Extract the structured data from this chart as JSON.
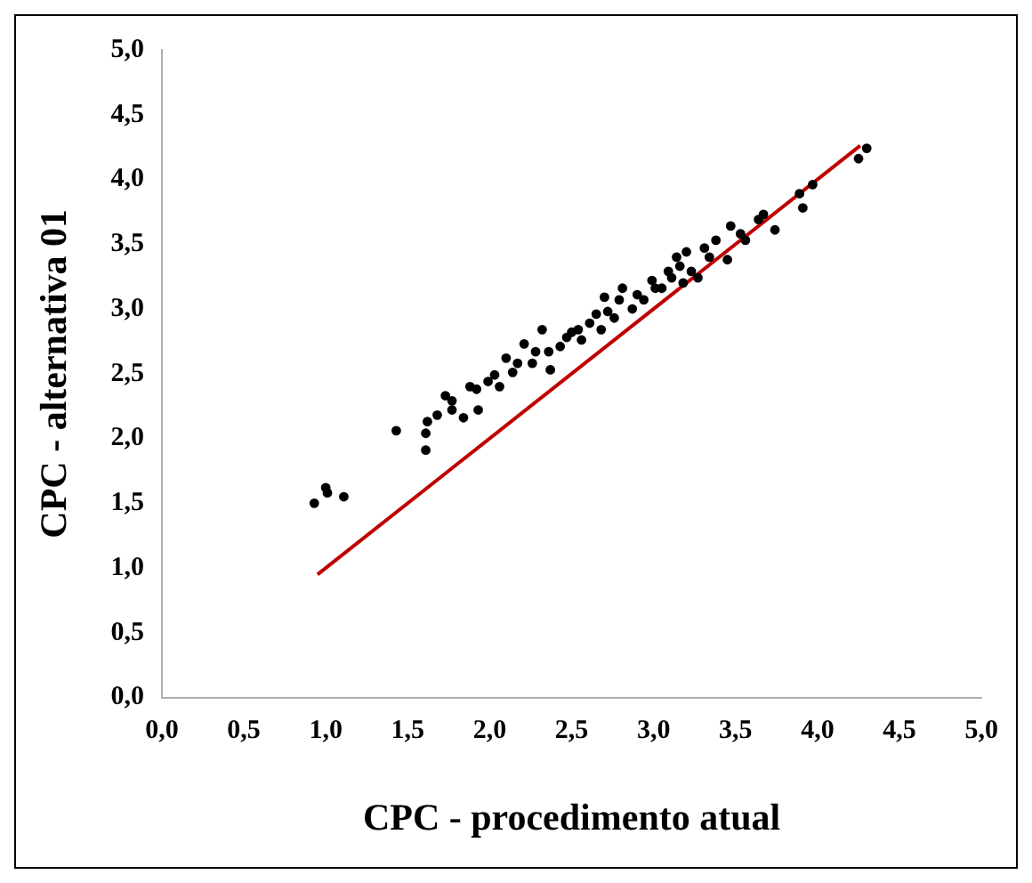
{
  "chart_data": {
    "type": "scatter",
    "xlabel": "CPC - procedimento atual",
    "ylabel": "CPC - alternativa 01",
    "xlim": [
      0,
      5
    ],
    "ylim": [
      0,
      5
    ],
    "xticks": [
      {
        "value": 0,
        "label": "0,0"
      },
      {
        "value": 0.5,
        "label": "0,5"
      },
      {
        "value": 1,
        "label": "1,0"
      },
      {
        "value": 1.5,
        "label": "1,5"
      },
      {
        "value": 2,
        "label": "2,0"
      },
      {
        "value": 2.5,
        "label": "2,5"
      },
      {
        "value": 3,
        "label": "3,0"
      },
      {
        "value": 3.5,
        "label": "3,5"
      },
      {
        "value": 4,
        "label": "4,0"
      },
      {
        "value": 4.5,
        "label": "4,5"
      },
      {
        "value": 5,
        "label": "5,0"
      }
    ],
    "yticks": [
      {
        "value": 0,
        "label": "0,0"
      },
      {
        "value": 0.5,
        "label": "0,5"
      },
      {
        "value": 1,
        "label": "1,0"
      },
      {
        "value": 1.5,
        "label": "1,5"
      },
      {
        "value": 2,
        "label": "2,0"
      },
      {
        "value": 2.5,
        "label": "2,5"
      },
      {
        "value": 3,
        "label": "3,0"
      },
      {
        "value": 3.5,
        "label": "3,5"
      },
      {
        "value": 4,
        "label": "4,0"
      },
      {
        "value": 4.5,
        "label": "4,5"
      },
      {
        "value": 5,
        "label": "5,0"
      }
    ],
    "grid": false,
    "legend": false,
    "marker": "circle",
    "series": [
      {
        "color": "#000000",
        "x": [
          0.93,
          1.0,
          1.01,
          1.11,
          1.43,
          1.61,
          1.61,
          1.62,
          1.68,
          1.73,
          1.77,
          1.84,
          1.92,
          1.93,
          1.99,
          2.06,
          2.1,
          2.14,
          2.21,
          2.26,
          2.32,
          2.37,
          2.43,
          2.5,
          2.56,
          2.61,
          2.68,
          2.7,
          2.76,
          2.81,
          2.87,
          2.94,
          2.99,
          3.05,
          3.11,
          3.14,
          3.2,
          3.18,
          3.27,
          3.31,
          3.38,
          3.45,
          3.47,
          3.53,
          3.56,
          3.64,
          3.67,
          3.74,
          3.89,
          3.91,
          3.97,
          4.25,
          4.3,
          1.77,
          1.88,
          2.03,
          2.17,
          2.28,
          2.36,
          2.47,
          2.54,
          2.65,
          2.72,
          2.79,
          2.9,
          3.01,
          3.09,
          3.16,
          3.23,
          3.34
        ],
        "values": [
          1.5,
          1.62,
          1.58,
          1.55,
          2.06,
          2.04,
          1.91,
          2.13,
          2.18,
          2.33,
          2.22,
          2.16,
          2.38,
          2.22,
          2.44,
          2.4,
          2.62,
          2.51,
          2.73,
          2.58,
          2.84,
          2.53,
          2.71,
          2.82,
          2.76,
          2.89,
          2.84,
          3.09,
          2.93,
          3.16,
          3.0,
          3.07,
          3.22,
          3.16,
          3.24,
          3.4,
          3.44,
          3.2,
          3.24,
          3.47,
          3.53,
          3.38,
          3.64,
          3.58,
          3.53,
          3.69,
          3.73,
          3.61,
          3.89,
          3.78,
          3.96,
          4.16,
          4.24,
          2.29,
          2.4,
          2.49,
          2.58,
          2.67,
          2.67,
          2.78,
          2.84,
          2.96,
          2.98,
          3.07,
          3.11,
          3.16,
          3.29,
          3.33,
          3.29,
          3.4
        ]
      },
      {
        "type": "line",
        "color": "#c00000",
        "marker": "none",
        "line_style": "solid",
        "x": [
          0.95,
          4.26
        ],
        "values": [
          0.95,
          4.26
        ]
      }
    ]
  }
}
